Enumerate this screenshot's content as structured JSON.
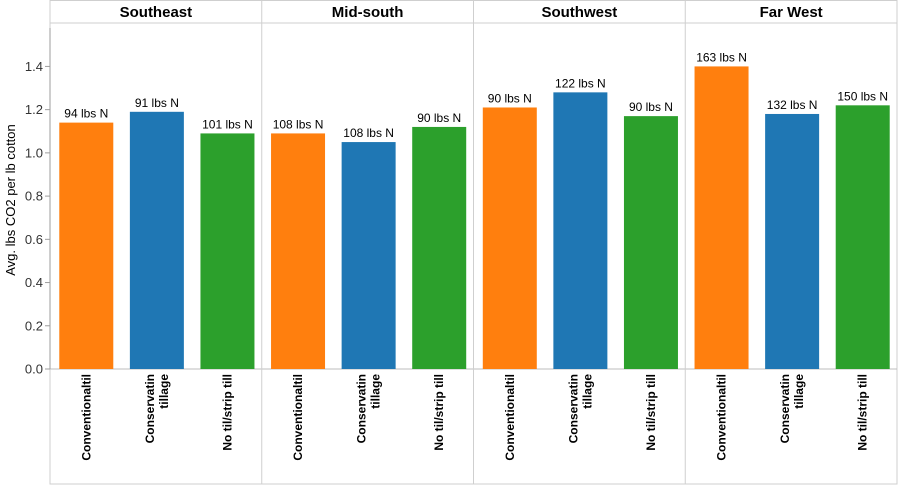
{
  "chart_data": {
    "type": "bar",
    "ylabel": "Avg. lbs CO2 per lb cotton",
    "ylim": [
      0,
      1.55
    ],
    "yticks": [
      "0.0",
      "0.2",
      "0.4",
      "0.6",
      "0.8",
      "1.0",
      "1.2",
      "1.4"
    ],
    "grid": false,
    "colors": {
      "Conventional": "#ff7f0e",
      "Conservation": "#1f77b4",
      "NoTill": "#2ca02c"
    },
    "panels": [
      {
        "name": "Southeast",
        "bars": [
          {
            "cat": [
              "Conventionaltil"
            ],
            "color_key": "Conventional",
            "value": 1.14,
            "label": "94 lbs N"
          },
          {
            "cat": [
              "Conservatin",
              "tillage"
            ],
            "color_key": "Conservation",
            "value": 1.19,
            "label": "91 lbs N"
          },
          {
            "cat": [
              "No til/strip till"
            ],
            "color_key": "NoTill",
            "value": 1.09,
            "label": "101 lbs N"
          }
        ]
      },
      {
        "name": "Mid-south",
        "bars": [
          {
            "cat": [
              "Conventionaltil"
            ],
            "color_key": "Conventional",
            "value": 1.09,
            "label": "108 lbs N"
          },
          {
            "cat": [
              "Conservatin",
              "tillage"
            ],
            "color_key": "Conservation",
            "value": 1.05,
            "label": "108 lbs N"
          },
          {
            "cat": [
              "No til/strip till"
            ],
            "color_key": "NoTill",
            "value": 1.12,
            "label": "90 lbs N"
          }
        ]
      },
      {
        "name": "Southwest",
        "bars": [
          {
            "cat": [
              "Conventionaltil"
            ],
            "color_key": "Conventional",
            "value": 1.21,
            "label": "90 lbs N"
          },
          {
            "cat": [
              "Conservatin",
              "tillage"
            ],
            "color_key": "Conservation",
            "value": 1.28,
            "label": "122 lbs N"
          },
          {
            "cat": [
              "No til/strip till"
            ],
            "color_key": "NoTill",
            "value": 1.17,
            "label": "90 lbs N"
          }
        ]
      },
      {
        "name": "Far West",
        "bars": [
          {
            "cat": [
              "Conventionaltil"
            ],
            "color_key": "Conventional",
            "value": 1.4,
            "label": "163 lbs N"
          },
          {
            "cat": [
              "Conservatin",
              "tillage"
            ],
            "color_key": "Conservation",
            "value": 1.18,
            "label": "132 lbs N"
          },
          {
            "cat": [
              "No til/strip till"
            ],
            "color_key": "NoTill",
            "value": 1.22,
            "label": "150 lbs N"
          }
        ]
      }
    ]
  }
}
